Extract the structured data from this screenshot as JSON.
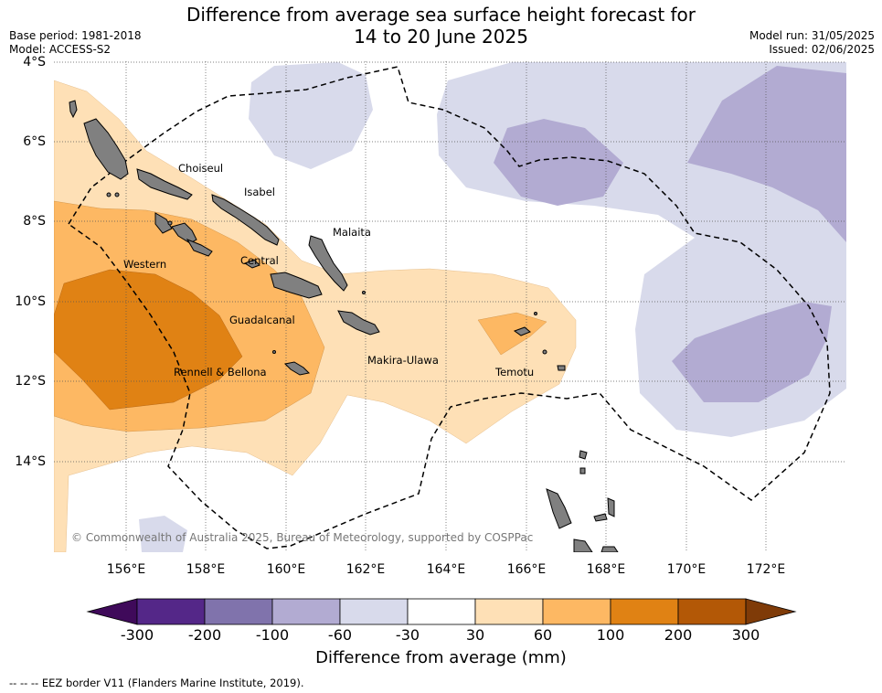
{
  "header": {
    "title_line1": "Difference from average sea surface height forecast for",
    "title_line2": "14 to 20 June 2025",
    "base_period": "Base period: 1981-2018",
    "model": "Model: ACCESS-S2",
    "model_run": "Model run: 31/05/2025",
    "issued": "Issued: 02/06/2025"
  },
  "map": {
    "lat_labels": [
      "4°S",
      "6°S",
      "8°S",
      "10°S",
      "12°S",
      "14°S"
    ],
    "lon_labels": [
      "156°E",
      "158°E",
      "160°E",
      "162°E",
      "164°E",
      "166°E",
      "168°E",
      "170°E",
      "172°E"
    ],
    "provinces": {
      "choiseul": "Choiseul",
      "isabel": "Isabel",
      "malaita": "Malaita",
      "western": "Western",
      "central": "Central",
      "guadalcanal": "Guadalcanal",
      "makira": "Makira-Ulawa",
      "rennell": "Rennell & Bellona",
      "temotu": "Temotu"
    },
    "copyright": "© Commonwealth of Australia 2025, Bureau of Meteorology, supported by COSPPac",
    "land_color": "#808080",
    "grid_style": "dotted"
  },
  "colorbar": {
    "title": "Difference from average (mm)",
    "ticks": [
      "-300",
      "-200",
      "-100",
      "-60",
      "-30",
      "30",
      "60",
      "100",
      "200",
      "300"
    ],
    "colors": [
      "#3f0a5a",
      "#542788",
      "#8073ac",
      "#b2abd2",
      "#d8daeb",
      "#ffffff",
      "#fee0b6",
      "#fdb863",
      "#e08214",
      "#b35806",
      "#7f3b08"
    ]
  },
  "footer": {
    "legend_symbol": "--  --  --",
    "legend_text": "EEZ border V11 (Flanders Marine Institute, 2019)."
  }
}
